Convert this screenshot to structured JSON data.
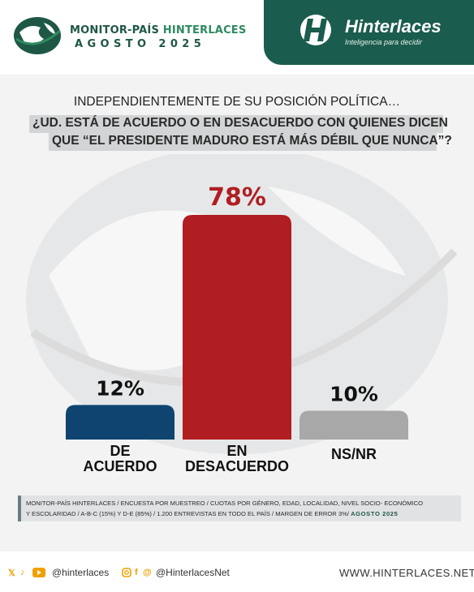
{
  "header": {
    "title_part1": "MONITOR-PAÍS",
    "title_part2": "HINTERLACES",
    "subtitle": "AGOSTO 2025",
    "brand_name": "Hinterlaces",
    "brand_tagline": "Inteligencia para decidir",
    "colors": {
      "brand_green": "#1a5c4d",
      "accent_green": "#2e8a5f"
    }
  },
  "question": {
    "line1": "INDEPENDIENTEMENTE DE SU POSICIÓN POLÍTICA…",
    "line2": "¿UD. ESTÁ DE ACUERDO O EN DESACUERDO CON QUIENES DICEN",
    "line3": "QUE “EL PRESIDENTE MADURO ESTÁ MÁS DÉBIL QUE NUNCA”?"
  },
  "chart_data": {
    "type": "bar",
    "categories": [
      "DE ACUERDO",
      "EN DESACUERDO",
      "NS/NR"
    ],
    "values": [
      12,
      78,
      10
    ],
    "value_labels": [
      "12%",
      "78%",
      "10%"
    ],
    "colors": [
      "#0f4470",
      "#b01e22",
      "#a8a8a8"
    ],
    "value_label_colors": [
      "#111111",
      "#b01e22",
      "#111111"
    ],
    "ylim": [
      0,
      100
    ],
    "grid": false
  },
  "footnote": {
    "line1": "MONITOR-PAÍS HINTERLACES / ENCUESTA POR MUESTREO / CUOTAS POR GÉNERO, EDAD, LOCALIDAD,  NIVEL SOCIO- ECONÓMICO",
    "line2": "Y ESCOLARIDAD / A-B-C (15%) Y D-E (85%) / 1.200 ENTREVISTAS EN TODO EL PAÍS  / MARGEN DE ERROR 3%/",
    "date": "AGOSTO 2025"
  },
  "footer": {
    "social1_handle": "@hinterlaces",
    "social2_handle": "@HinterlacesNet",
    "website": "WWW.HINTERLACES.NET",
    "icons": [
      "x-icon",
      "tiktok-icon",
      "youtube-icon",
      "instagram-icon",
      "facebook-icon",
      "threads-icon"
    ]
  }
}
